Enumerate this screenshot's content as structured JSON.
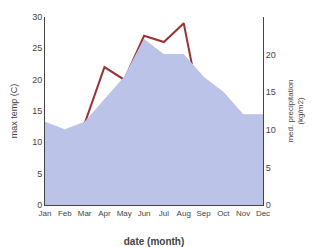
{
  "chart_data": {
    "type": "line",
    "categories": [
      "Jan",
      "Feb",
      "Mar",
      "Apr",
      "May",
      "Jun",
      "Jul",
      "Aug",
      "Sep",
      "Oct",
      "Nov",
      "Dec"
    ],
    "series": [
      {
        "type": "area",
        "axis": "y2",
        "color": "#bbc4e8",
        "values": [
          11,
          10,
          11,
          14,
          17,
          22,
          20,
          20,
          17,
          15,
          12,
          12
        ]
      },
      {
        "type": "line",
        "color": "#993333",
        "values": [
          8,
          11,
          13,
          22,
          20,
          27,
          26,
          29,
          13,
          11,
          9,
          9
        ]
      }
    ],
    "x_label": "date (month)",
    "y_label": "max temp (C)",
    "y2_label": "med. precipitation\n(kg/m2)",
    "ylim": [
      0,
      30
    ],
    "yticks": [
      0,
      5,
      10,
      15,
      20,
      25,
      30
    ],
    "y2lim": [
      0,
      25
    ],
    "y2ticks": [
      0,
      5,
      10,
      15,
      20
    ],
    "grid": false
  }
}
